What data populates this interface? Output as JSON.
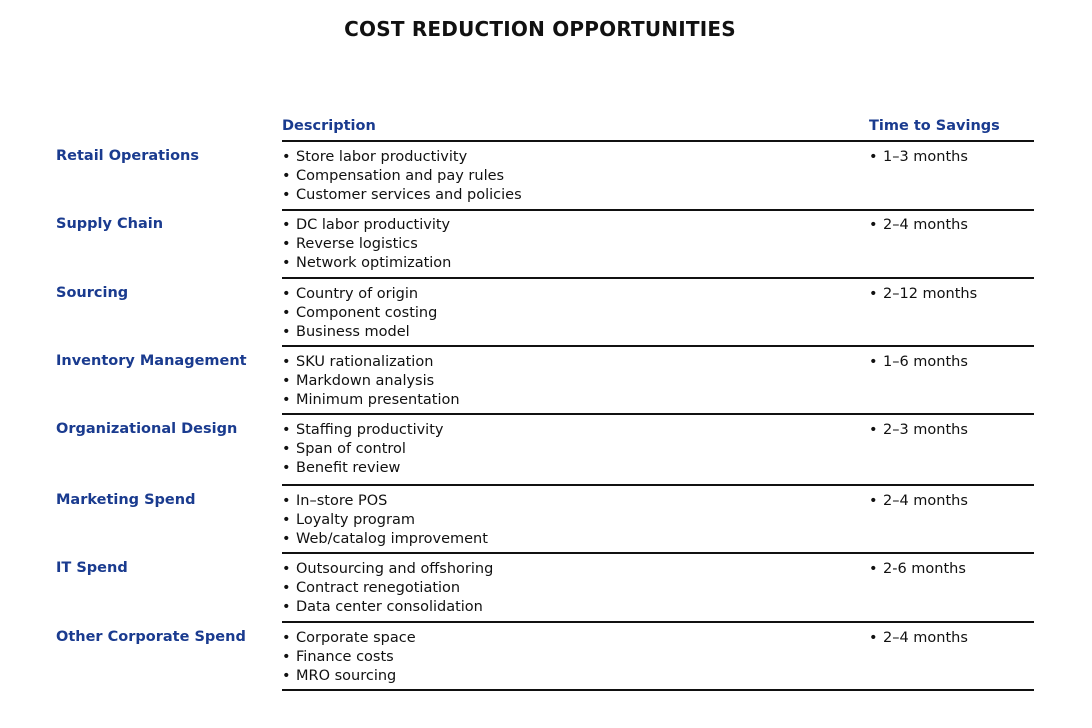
{
  "title": "COST REDUCTION OPPORTUNITIES",
  "headers": {
    "description": "Description",
    "time": "Time to Savings"
  },
  "bullet": "•",
  "colors": {
    "heading_blue": "#1a3b8f",
    "text": "#111111",
    "rule": "#111111"
  },
  "rows": [
    {
      "category": "Retail Operations",
      "items": [
        "Store labor productivity",
        "Compensation and pay rules",
        "Customer services and policies"
      ],
      "time": "1–3 months"
    },
    {
      "category": "Supply Chain",
      "items": [
        "DC labor productivity",
        "Reverse logistics",
        "Network optimization"
      ],
      "time": "2–4 months"
    },
    {
      "category": "Sourcing",
      "items": [
        "Country of origin",
        "Component costing",
        "Business model"
      ],
      "time": "2–12 months"
    },
    {
      "category": "Inventory Management",
      "items": [
        "SKU rationalization",
        "Markdown analysis",
        "Minimum presentation"
      ],
      "time": "1–6 months"
    },
    {
      "category": "Organizational Design",
      "items": [
        "Staffing productivity",
        "Span of control",
        "Benefit review"
      ],
      "time": "2–3 months"
    },
    {
      "category": "Marketing Spend",
      "items": [
        "In–store POS",
        "Loyalty program",
        "Web/catalog improvement"
      ],
      "time": "2–4 months"
    },
    {
      "category": "IT Spend",
      "items": [
        "Outsourcing and offshoring",
        "Contract renegotiation",
        "Data center consolidation"
      ],
      "time": "2-6 months"
    },
    {
      "category": "Other Corporate Spend",
      "items": [
        "Corporate space",
        "Finance costs",
        "MRO sourcing"
      ],
      "time": "2–4 months"
    }
  ]
}
